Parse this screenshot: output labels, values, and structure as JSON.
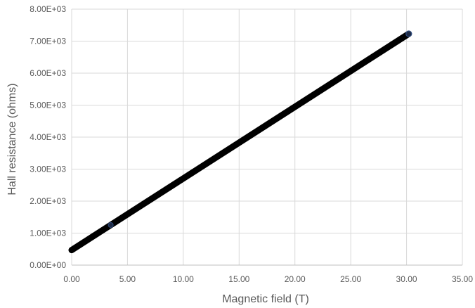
{
  "chart_data": {
    "type": "scatter",
    "xlabel": "Magnetic field (T)",
    "ylabel": "Hall resistance (ohms)",
    "xlim": [
      0,
      35
    ],
    "ylim": [
      0,
      8000
    ],
    "grid": true,
    "x_ticks": [
      0,
      5,
      10,
      15,
      20,
      25,
      30,
      35
    ],
    "x_tick_labels": [
      "0.00",
      "5.00",
      "10.00",
      "15.00",
      "20.00",
      "25.00",
      "30.00",
      "35.00"
    ],
    "y_ticks": [
      0,
      1000,
      2000,
      3000,
      4000,
      5000,
      6000,
      7000,
      8000
    ],
    "y_tick_labels": [
      "0.00E+00",
      "1.00E+03",
      "2.00E+03",
      "3.00E+03",
      "4.00E+03",
      "5.00E+03",
      "6.00E+03",
      "7.00E+03",
      "8.00E+03"
    ],
    "series": [
      {
        "x_start": 0.0,
        "x_end": 30.2,
        "y_start": 470,
        "y_end": 7230,
        "marker_color": "#000000",
        "marker_edge_color": "#2e4a7d"
      }
    ]
  }
}
